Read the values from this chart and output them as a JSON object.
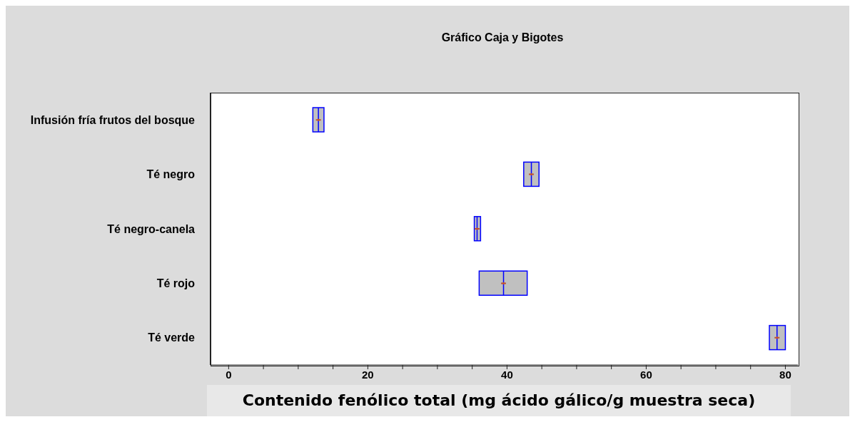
{
  "chart_data": {
    "type": "box",
    "orientation": "horizontal",
    "title": "Gráfico Caja y Bigotes",
    "xlabel": "Contenido fenólico total (mg ácido gálico/g muestra seca)",
    "categories": [
      "Infusión fría frutos del bosque",
      "Té negro",
      "Té negro-canela",
      "Té rojo",
      "Té verde"
    ],
    "series": [
      {
        "color": "#c0c0c0",
        "boxes": [
          {
            "low": 12.1,
            "q1": 12.1,
            "median": 12.9,
            "q3": 13.7,
            "high": 13.7
          },
          {
            "low": 42.4,
            "q1": 42.4,
            "median": 43.5,
            "q3": 44.6,
            "high": 44.6
          },
          {
            "low": 35.3,
            "q1": 35.3,
            "median": 35.7,
            "q3": 36.2,
            "high": 36.2
          },
          {
            "low": 36.0,
            "q1": 36.0,
            "median": 39.5,
            "q3": 42.9,
            "high": 42.9
          },
          {
            "low": 77.7,
            "q1": 77.7,
            "median": 78.8,
            "q3": 80.0,
            "high": 80.0
          }
        ]
      },
      {
        "type": "scatter",
        "color": "#c05030",
        "marker": "cross",
        "values": [
          12.9,
          43.5,
          35.7,
          39.5,
          78.8
        ]
      }
    ],
    "xlim": [
      -2.6,
      81.8
    ],
    "xticks": [
      0,
      {
        "value": 5,
        "label": null
      },
      {
        "value": 10,
        "label": null
      },
      {
        "value": 15,
        "label": null
      },
      20,
      {
        "value": 25,
        "label": null
      },
      {
        "value": 30,
        "label": null
      },
      {
        "value": 35,
        "label": null
      },
      40,
      {
        "value": 45,
        "label": null
      },
      {
        "value": 50,
        "label": null
      },
      {
        "value": 55,
        "label": null
      },
      60,
      {
        "value": 65,
        "label": null
      },
      {
        "value": 70,
        "label": null
      },
      {
        "value": 75,
        "label": null
      },
      80
    ],
    "grid": false,
    "legend": false
  }
}
